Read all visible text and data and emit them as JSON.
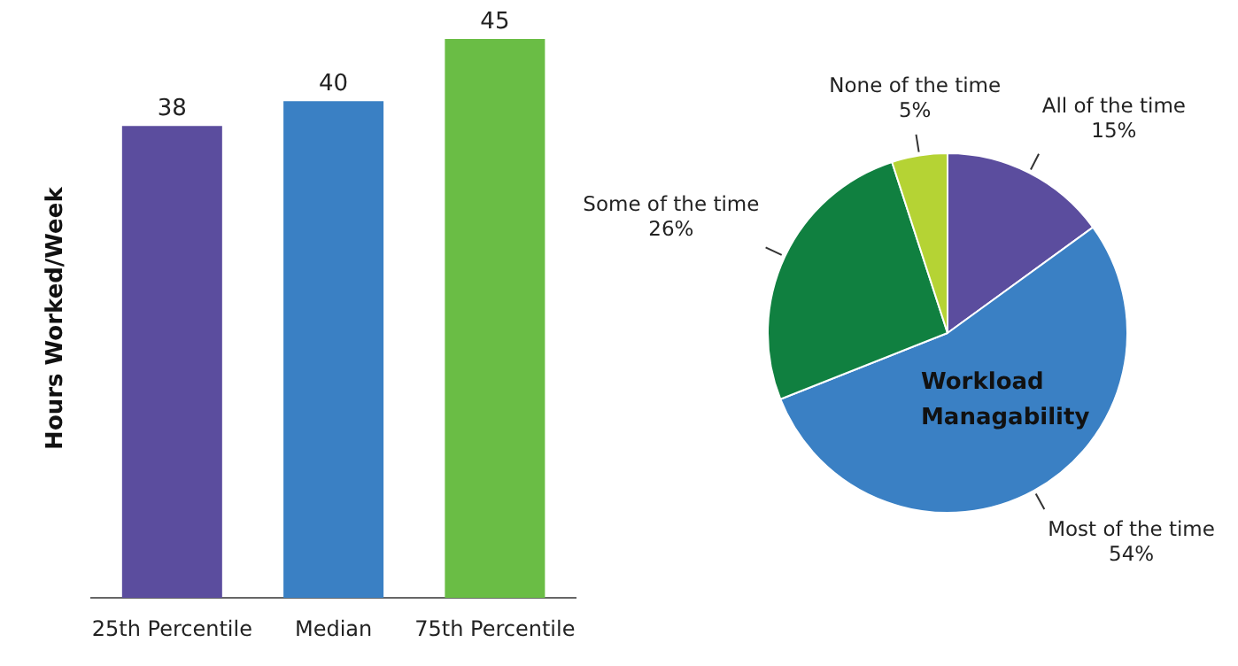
{
  "chart_data": [
    {
      "type": "bar",
      "ylabel": "Hours Worked/Week",
      "categories": [
        "25th Percentile",
        "Median",
        "75th Percentile"
      ],
      "values": [
        38,
        40,
        45
      ],
      "colors": [
        "#5b4d9e",
        "#3a80c4",
        "#6abd45"
      ],
      "data_labels": true
    },
    {
      "type": "pie",
      "categories": [
        "All of the time",
        "Most of the time",
        "Some of the time",
        "None of the time"
      ],
      "values": [
        15,
        54,
        26,
        5
      ],
      "colors": [
        "#5b4d9e",
        "#3a80c4",
        "#108040",
        "#b5d334"
      ],
      "value_labels": [
        "15%",
        "54%",
        "26%",
        "5%"
      ],
      "annotations": [
        "Workload Managability"
      ]
    }
  ]
}
